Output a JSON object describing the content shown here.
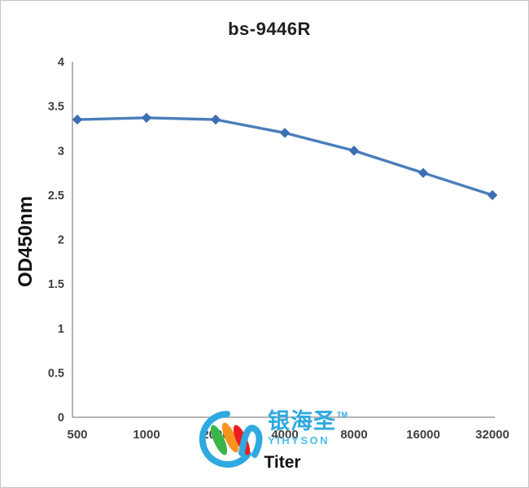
{
  "frame": {
    "background": "#ffffff",
    "border_color": "#c6c6c6"
  },
  "chart_data": {
    "type": "line",
    "title": "bs-9446R",
    "xlabel": "Titer",
    "ylabel": "OD450nm",
    "categories": [
      "500",
      "1000",
      "2000",
      "4000",
      "8000",
      "16000",
      "32000"
    ],
    "values": [
      3.35,
      3.37,
      3.35,
      3.2,
      3.0,
      2.75,
      2.5
    ],
    "ylim": [
      0,
      4
    ],
    "ytick_step": 0.5,
    "yticks": [
      "0",
      "0.5",
      "1",
      "1.5",
      "2",
      "2.5",
      "3",
      "3.5",
      "4"
    ],
    "grid": false,
    "legend": "none",
    "marker": "diamond",
    "line_color": "#4a7ebb",
    "marker_color": "#3d6eb4",
    "axis_color": "#9e9e9e",
    "tick_label_color": "#3f3f3f"
  },
  "watermark": {
    "cn": "银海圣",
    "tm": "TM",
    "en": "YIHYSON",
    "colors": {
      "blue": "#2fa9e0",
      "light_blue": "#49bdf0",
      "green": "#3ab54a",
      "orange": "#f7941e",
      "red": "#ed1c24"
    }
  }
}
